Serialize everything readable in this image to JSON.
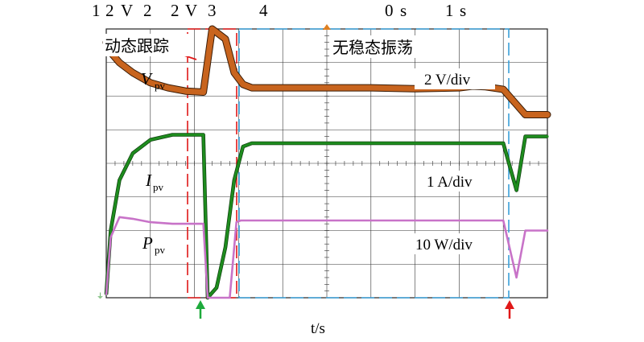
{
  "chart_data": {
    "type": "line",
    "title": "",
    "xlabel": "t/s",
    "ylabel": "",
    "top_scale_labels": [
      "1",
      "2",
      "V",
      "2",
      "2",
      "V",
      "3",
      "4",
      "0",
      "s",
      "1",
      "s"
    ],
    "annotations": {
      "dynamic_tracking": "动态跟踪",
      "no_steady_oscillation": "无稳态振荡"
    },
    "grid": {
      "on": true,
      "x_divisions": 10,
      "y_divisions": 8
    },
    "x_range_div": [
      0,
      10
    ],
    "y_range_div": [
      0,
      8
    ],
    "series": [
      {
        "name": "V_pv",
        "symbol": "V",
        "subscript": "pv",
        "scale": "2 V/div",
        "color": "#c8641e",
        "x": [
          0,
          0.1,
          0.3,
          0.6,
          1.0,
          1.4,
          1.8,
          2.2,
          2.4,
          2.7,
          2.9,
          3.1,
          3.3,
          4,
          5,
          6,
          7,
          8,
          8.3,
          8.6,
          9.0,
          9.5,
          10
        ],
        "y": [
          7.6,
          7.3,
          7.0,
          6.7,
          6.4,
          6.25,
          6.15,
          6.12,
          8.0,
          7.7,
          6.7,
          6.35,
          6.25,
          6.25,
          6.25,
          6.25,
          6.22,
          6.25,
          6.3,
          6.28,
          6.2,
          5.45,
          5.45
        ]
      },
      {
        "name": "I_pv",
        "symbol": "I",
        "subscript": "pv",
        "scale": "1 A/div",
        "color": "#1e8c1e",
        "x": [
          0,
          0.1,
          0.3,
          0.6,
          1.0,
          1.5,
          2.2,
          2.3,
          2.5,
          2.7,
          2.9,
          3.1,
          3.3,
          4,
          5,
          6,
          7,
          8,
          9.0,
          9.3,
          9.5,
          10
        ],
        "y": [
          0.1,
          2.0,
          3.5,
          4.3,
          4.7,
          4.85,
          4.85,
          0.0,
          0.3,
          1.5,
          3.5,
          4.5,
          4.6,
          4.6,
          4.6,
          4.6,
          4.6,
          4.6,
          4.6,
          3.2,
          4.8,
          4.8
        ]
      },
      {
        "name": "P_pv",
        "symbol": "P",
        "subscript": "pv",
        "scale": "10 W/div",
        "color": "#c873c8",
        "x": [
          0,
          0.1,
          0.3,
          0.6,
          1.0,
          1.5,
          2.2,
          2.3,
          2.6,
          2.8,
          2.95,
          3.05,
          3.2,
          4,
          5,
          6,
          7,
          8,
          9.0,
          9.3,
          9.5,
          10
        ],
        "y": [
          0.1,
          1.8,
          2.4,
          2.35,
          2.25,
          2.2,
          2.2,
          0.0,
          0.0,
          0.0,
          2.25,
          2.3,
          2.3,
          2.3,
          2.3,
          2.3,
          2.3,
          2.3,
          2.3,
          0.6,
          2.0,
          2.0
        ]
      }
    ]
  }
}
